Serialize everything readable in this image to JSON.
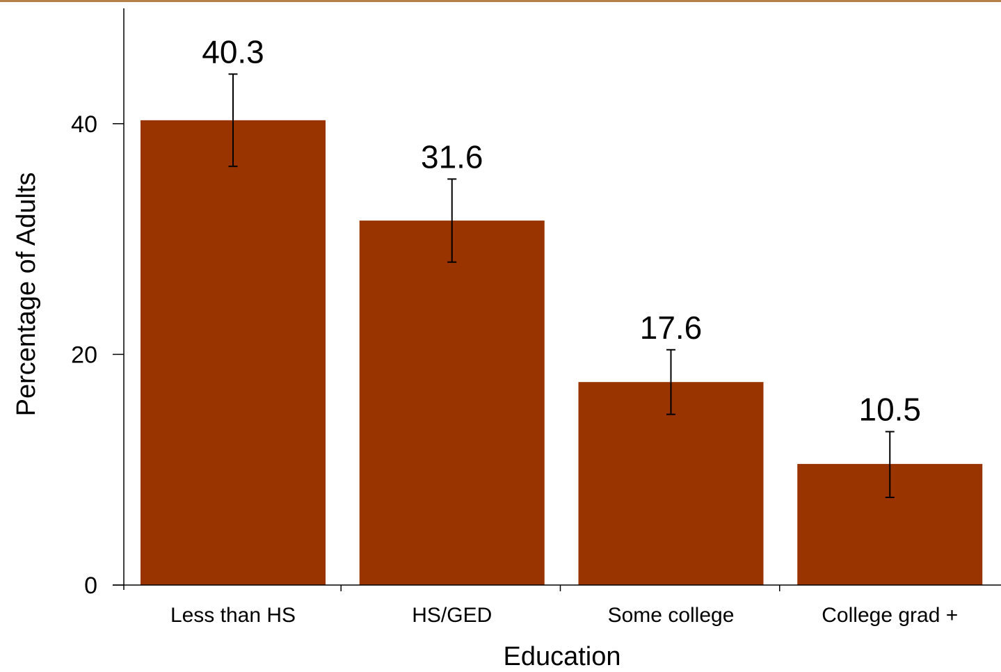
{
  "chart_data": {
    "type": "bar",
    "categories": [
      "Less than HS",
      "HS/GED",
      "Some college",
      "College grad +"
    ],
    "values": [
      40.3,
      31.6,
      17.6,
      10.5
    ],
    "error_bars": [
      {
        "low": 36.3,
        "high": 44.3
      },
      {
        "low": 28.0,
        "high": 35.2
      },
      {
        "low": 14.8,
        "high": 20.4
      },
      {
        "low": 7.6,
        "high": 13.3
      }
    ],
    "data_labels": [
      "40.3",
      "31.6",
      "17.6",
      "10.5"
    ],
    "xlabel": "Education",
    "ylabel": "Percentage of Adults",
    "ylim": [
      0,
      50
    ],
    "yticks": [
      0,
      20,
      40
    ],
    "ytick_labels": [
      "0",
      "20",
      "40"
    ],
    "grid": false,
    "bar_color": "#993300",
    "top_rule_color": "#b5804a"
  }
}
